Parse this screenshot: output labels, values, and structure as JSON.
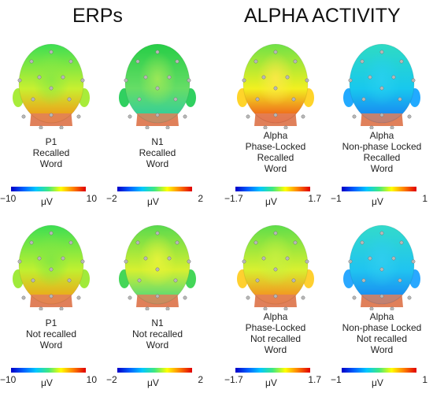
{
  "titles": {
    "erps": "ERPs",
    "alpha": "ALPHA ACTIVITY"
  },
  "colors": {
    "scale": [
      "#0000c8",
      "#0060ff",
      "#00c8ff",
      "#40e880",
      "#ffff00",
      "#ff8000",
      "#e00000"
    ],
    "skin": "#e0805a",
    "electrode": "#b8b8b8"
  },
  "panels": [
    {
      "row": "recalled",
      "col": "p1",
      "caption": [
        "P1",
        "Recalled",
        "Word"
      ],
      "scale": {
        "min": "−10",
        "unit": "μV",
        "max": "10"
      },
      "map": {
        "top": "#33dd55",
        "mid": "#c8f030",
        "bottom": "#ff7a10",
        "side": "#a8ec3a",
        "center": "#88e844"
      }
    },
    {
      "row": "recalled",
      "col": "n1",
      "caption": [
        "N1",
        "Recalled",
        "Word"
      ],
      "scale": {
        "min": "−2",
        "unit": "μV",
        "max": "2"
      },
      "map": {
        "top": "#22cc44",
        "mid": "#66dd66",
        "bottom": "#1ec8b0",
        "side": "#30d060",
        "center": "#a6ea55"
      }
    },
    {
      "row": "recalled",
      "col": "alpha-pl",
      "caption": [
        "Alpha",
        "Phase-Locked",
        "Recalled",
        "Word"
      ],
      "scale": {
        "min": "−1.7",
        "unit": "μV",
        "max": "1.7"
      },
      "map": {
        "top": "#66e04a",
        "mid": "#f2f020",
        "bottom": "#ee2a1a",
        "side": "#ffd42a",
        "center": "#ffe84a"
      }
    },
    {
      "row": "recalled",
      "col": "alpha-npl",
      "caption": [
        "Alpha",
        "Non-phase Locked",
        "Recalled",
        "Word"
      ],
      "scale": {
        "min": "−1",
        "unit": "μV",
        "max": "1"
      },
      "map": {
        "top": "#30dcc0",
        "mid": "#18c8ee",
        "bottom": "#1a6ef2",
        "side": "#22aaff",
        "center": "#28d0f0"
      }
    },
    {
      "row": "not-recalled",
      "col": "p1",
      "caption": [
        "P1",
        "Not recalled",
        "Word"
      ],
      "scale": {
        "min": "−10",
        "unit": "μV",
        "max": "10"
      },
      "map": {
        "top": "#33dd55",
        "mid": "#c0f030",
        "bottom": "#ff8a10",
        "side": "#a0ea3a",
        "center": "#80e644"
      }
    },
    {
      "row": "not-recalled",
      "col": "n1",
      "caption": [
        "N1",
        "Not recalled",
        "Word"
      ],
      "scale": {
        "min": "−2",
        "unit": "μV",
        "max": "2"
      },
      "map": {
        "top": "#50d850",
        "mid": "#d6f030",
        "bottom": "#28d090",
        "side": "#44d658",
        "center": "#eaf43a"
      }
    },
    {
      "row": "not-recalled",
      "col": "alpha-pl",
      "caption": [
        "Alpha",
        "Phase-Locked",
        "Not recalled",
        "Word"
      ],
      "scale": {
        "min": "−1.7",
        "unit": "μV",
        "max": "1.7"
      },
      "map": {
        "top": "#56dc4c",
        "mid": "#d8f030",
        "bottom": "#ff6a18",
        "side": "#ffd030",
        "center": "#c8f040"
      }
    },
    {
      "row": "not-recalled",
      "col": "alpha-npl",
      "caption": [
        "Alpha",
        "Non-phase Locked",
        "Not recalled",
        "Word"
      ],
      "scale": {
        "min": "−1",
        "unit": "μV",
        "max": "1"
      },
      "map": {
        "top": "#34dcc8",
        "mid": "#20c4f0",
        "bottom": "#1876f2",
        "side": "#2aa8ff",
        "center": "#30cef0"
      }
    }
  ]
}
